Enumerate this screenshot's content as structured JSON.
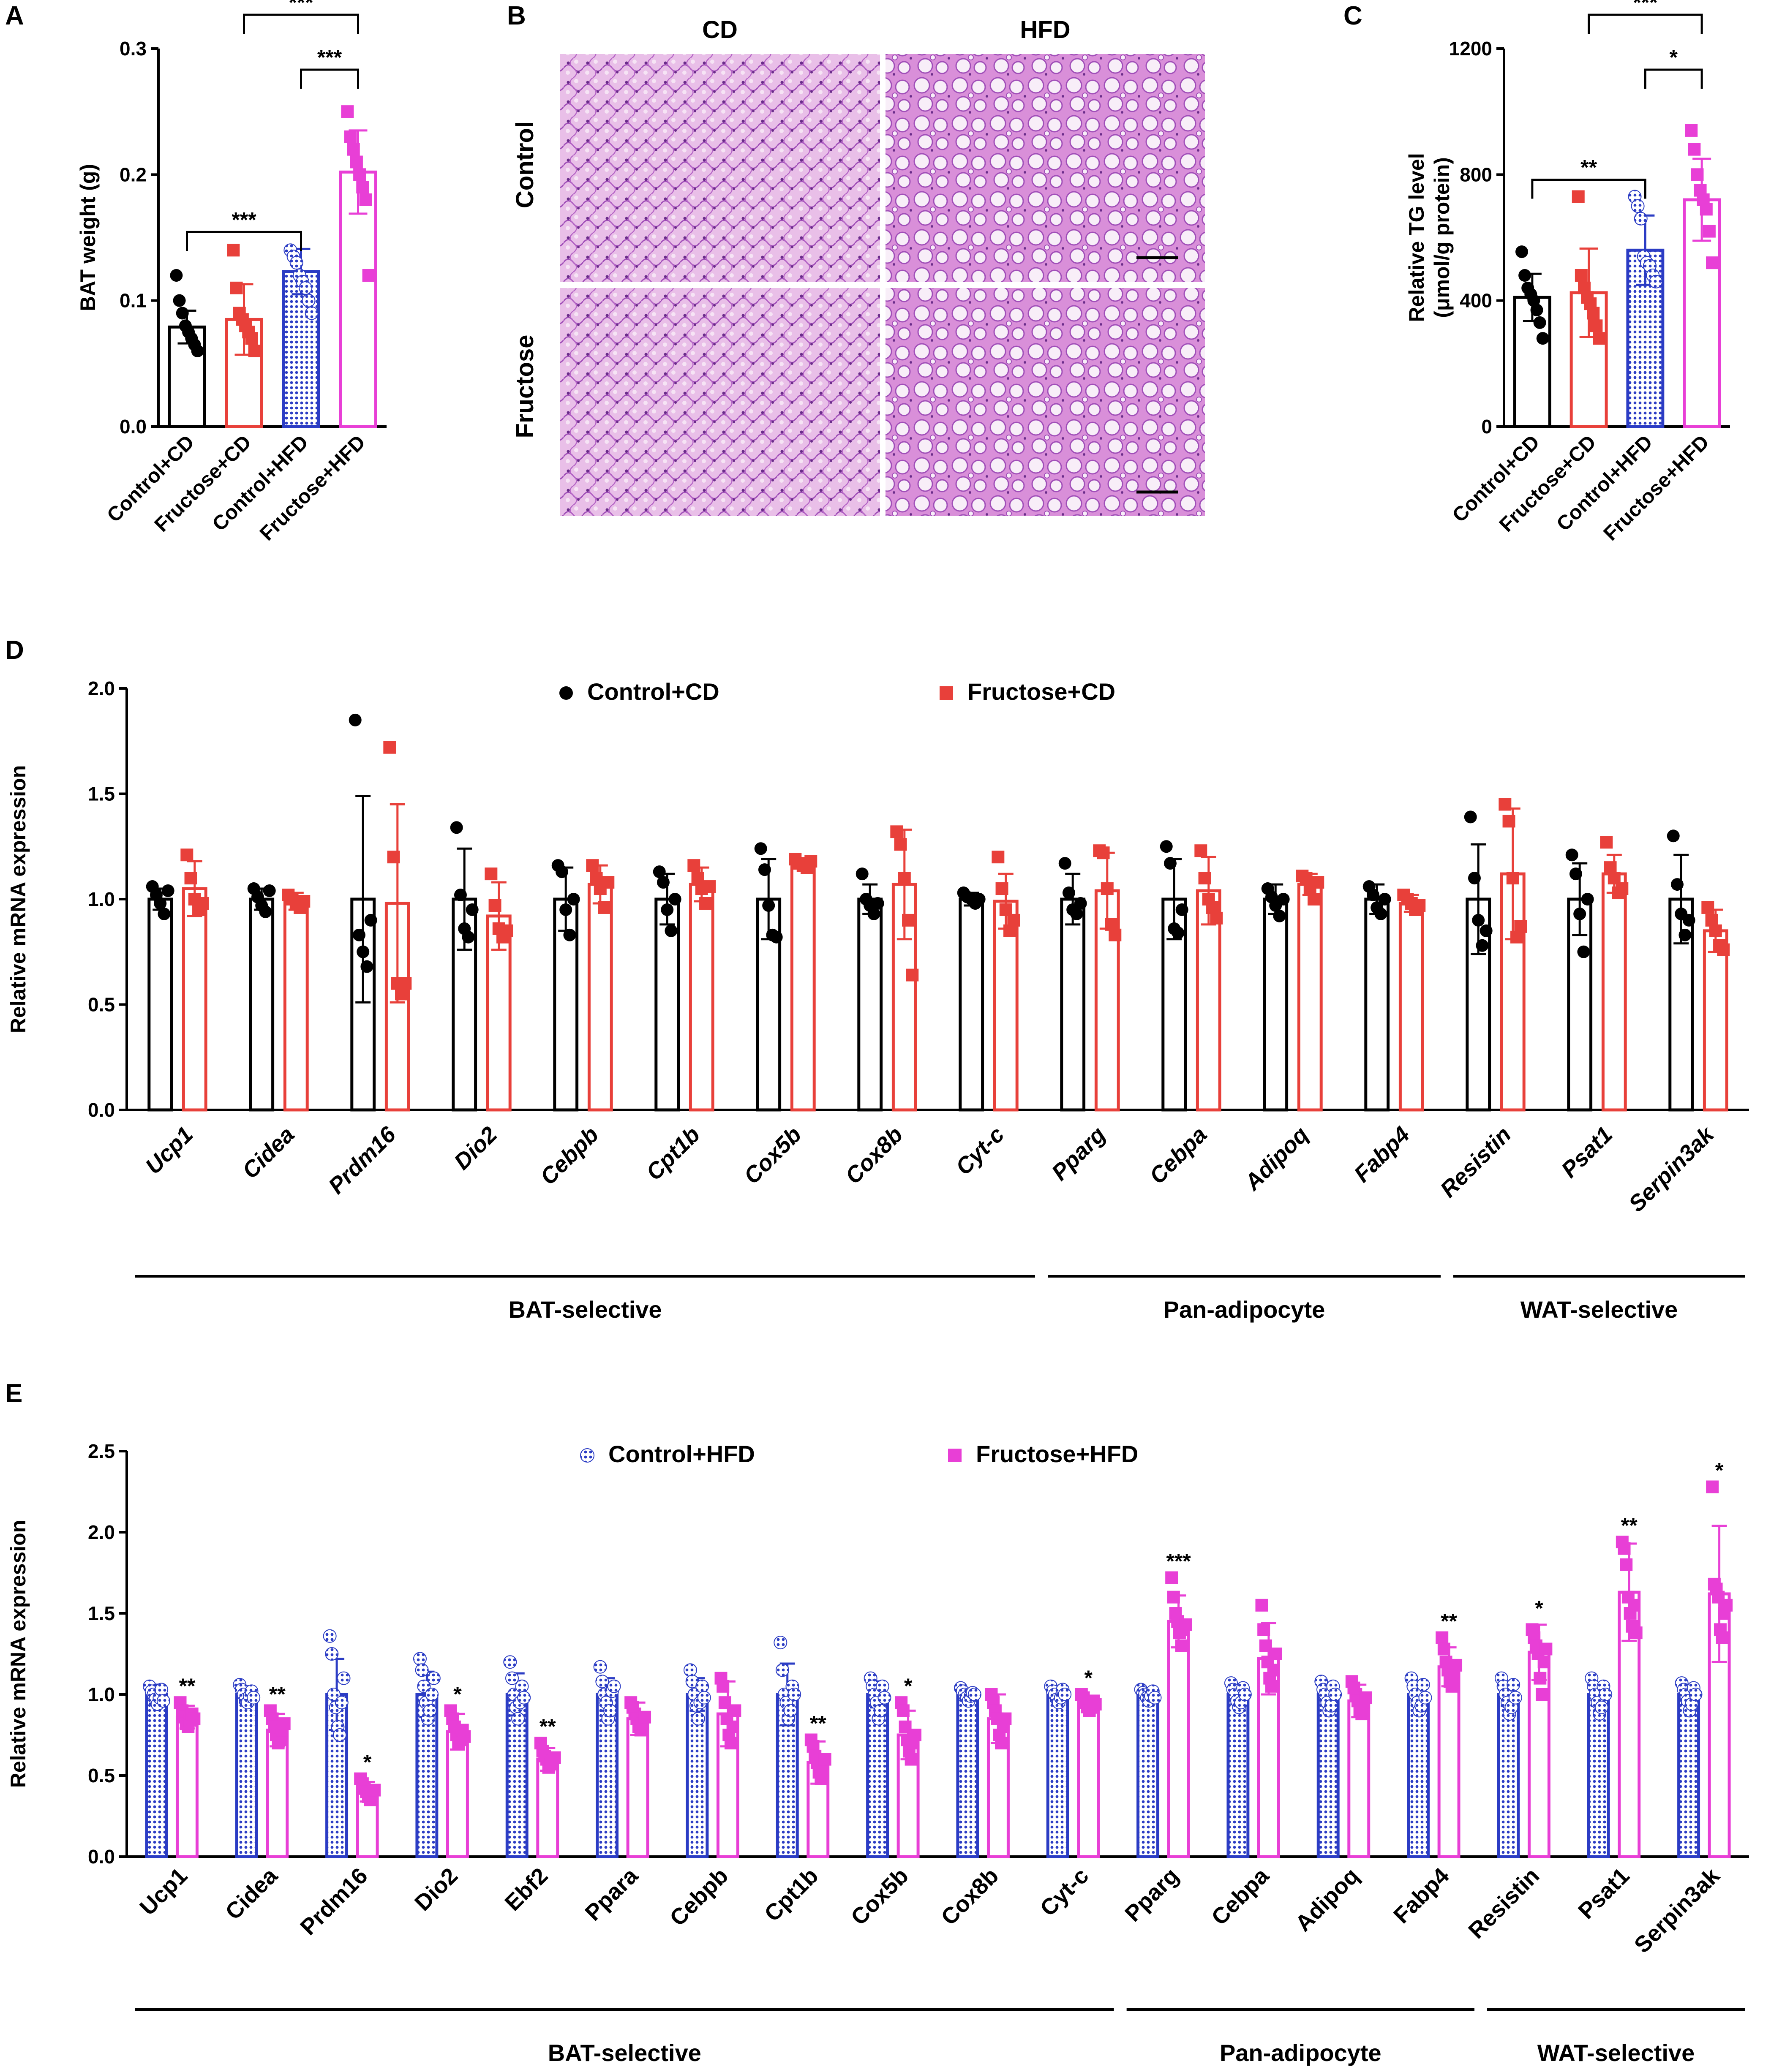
{
  "panel_labels": [
    "A",
    "B",
    "C",
    "D",
    "E"
  ],
  "colors": {
    "control_cd": "#000000",
    "fructose_cd": "#e8403a",
    "control_hfd": "#2b3cc4",
    "fructose_hfd": "#e83fd6",
    "he_stain_pink": "#e6b3e6",
    "he_stain_purple": "#9b4fb3"
  },
  "panel_b": {
    "col_headers": [
      "CD",
      "HFD"
    ],
    "row_headers": [
      "Control",
      "Fructose"
    ],
    "image_desc": [
      "he-histology-control-cd",
      "he-histology-control-hfd",
      "he-histology-fructose-cd",
      "he-histology-fructose-hfd"
    ]
  },
  "chart_data": [
    {
      "id": "A",
      "type": "bar",
      "ylabel": "BAT weight (g)",
      "categories": [
        "Control+CD",
        "Fructose+CD",
        "Control+HFD",
        "Fructose+HFD"
      ],
      "values": [
        0.079,
        0.085,
        0.123,
        0.202
      ],
      "errors": [
        0.013,
        0.028,
        0.018,
        0.033
      ],
      "points": [
        [
          0.12,
          0.1,
          0.09,
          0.08,
          0.075,
          0.07,
          0.065,
          0.06
        ],
        [
          0.14,
          0.11,
          0.09,
          0.085,
          0.08,
          0.075,
          0.07,
          0.06
        ],
        [
          0.14,
          0.135,
          0.13,
          0.12,
          0.115,
          0.11,
          0.1,
          0.09
        ],
        [
          0.25,
          0.23,
          0.22,
          0.21,
          0.2,
          0.19,
          0.18,
          0.12
        ]
      ],
      "ylim": [
        0,
        0.3
      ],
      "yticks": [
        "0.0",
        "0.1",
        "0.2",
        "0.3"
      ],
      "ytick_values": [
        0,
        0.1,
        0.2,
        0.3
      ],
      "sig": [
        {
          "from": 0,
          "to": 2,
          "label": "***"
        },
        {
          "from": 2,
          "to": 3,
          "label": "***"
        },
        {
          "from": 1,
          "to": 3,
          "label": "***"
        }
      ]
    },
    {
      "id": "C",
      "type": "bar",
      "ylabel": "Relative TG level",
      "ylabel2": "(μmol/g protein)",
      "categories": [
        "Control+CD",
        "Fructose+CD",
        "Control+HFD",
        "Fructose+HFD"
      ],
      "values": [
        410,
        425,
        560,
        720
      ],
      "errors": [
        75,
        140,
        110,
        130
      ],
      "points": [
        [
          555,
          480,
          440,
          420,
          400,
          370,
          330,
          280
        ],
        [
          730,
          480,
          440,
          410,
          390,
          360,
          320,
          280
        ],
        [
          730,
          700,
          660,
          540,
          520,
          510,
          480,
          460
        ],
        [
          940,
          880,
          800,
          750,
          720,
          690,
          620,
          520
        ]
      ],
      "ylim": [
        0,
        1200
      ],
      "yticks": [
        "0",
        "400",
        "800",
        "1200"
      ],
      "ytick_values": [
        0,
        400,
        800,
        1200
      ],
      "sig": [
        {
          "from": 0,
          "to": 2,
          "label": "**"
        },
        {
          "from": 2,
          "to": 3,
          "label": "*"
        },
        {
          "from": 1,
          "to": 3,
          "label": "***"
        }
      ]
    },
    {
      "id": "D",
      "type": "bar",
      "ylabel": "Relative mRNA expression",
      "series": [
        {
          "name": "Control+CD",
          "values": [
            1.0,
            1.0,
            1.0,
            1.0,
            1.0,
            1.0,
            1.0,
            1.0,
            1.0,
            1.0,
            1.0,
            1.0,
            1.0,
            1.0,
            1.0,
            1.0
          ],
          "errors": [
            0.05,
            0.05,
            0.49,
            0.24,
            0.15,
            0.12,
            0.19,
            0.07,
            0.03,
            0.12,
            0.19,
            0.07,
            0.07,
            0.26,
            0.17,
            0.21
          ],
          "points": [
            [
              1.06,
              1.02,
              0.98,
              0.93,
              1.04
            ],
            [
              1.05,
              1.01,
              0.97,
              0.94,
              1.04
            ],
            [
              1.85,
              0.83,
              0.75,
              0.68,
              0.9
            ],
            [
              1.34,
              1.02,
              0.86,
              0.82,
              0.95
            ],
            [
              1.16,
              1.13,
              0.95,
              0.83,
              1.0
            ],
            [
              1.13,
              1.08,
              0.95,
              0.85,
              1.0
            ],
            [
              1.24,
              1.14,
              0.97,
              0.83,
              0.82
            ],
            [
              1.12,
              1.0,
              0.97,
              0.93,
              0.98
            ],
            [
              1.03,
              1.01,
              1.0,
              0.98,
              1.0
            ],
            [
              1.17,
              1.03,
              0.95,
              0.93,
              0.98
            ],
            [
              1.25,
              1.17,
              0.86,
              0.84,
              0.95
            ],
            [
              1.05,
              1.01,
              0.97,
              0.92,
              1.0
            ],
            [
              1.06,
              1.02,
              0.96,
              0.93,
              1.0
            ],
            [
              1.39,
              1.1,
              0.9,
              0.78,
              0.85
            ],
            [
              1.21,
              1.12,
              0.93,
              0.75,
              1.0
            ],
            [
              1.3,
              1.07,
              0.93,
              0.83,
              0.9
            ]
          ]
        },
        {
          "name": "Fructose+CD",
          "values": [
            1.05,
            0.99,
            0.98,
            0.92,
            1.07,
            1.07,
            1.17,
            1.07,
            0.99,
            1.04,
            1.04,
            1.07,
            0.98,
            1.12,
            1.12,
            0.85
          ],
          "errors": [
            0.13,
            0.04,
            0.47,
            0.16,
            0.09,
            0.08,
            0.02,
            0.26,
            0.13,
            0.18,
            0.16,
            0.05,
            0.04,
            0.31,
            0.09,
            0.1
          ],
          "points": [
            [
              1.21,
              1.1,
              1.0,
              0.95,
              0.98
            ],
            [
              1.02,
              1.0,
              0.98,
              0.96,
              0.99
            ],
            [
              1.72,
              1.2,
              0.6,
              0.55,
              0.6
            ],
            [
              1.12,
              0.97,
              0.86,
              0.82,
              0.85
            ],
            [
              1.16,
              1.1,
              1.05,
              0.96,
              1.08
            ],
            [
              1.16,
              1.1,
              1.05,
              0.98,
              1.06
            ],
            [
              1.19,
              1.17,
              1.16,
              1.15,
              1.18
            ],
            [
              1.32,
              1.26,
              1.1,
              0.9,
              0.64
            ],
            [
              1.2,
              1.05,
              0.95,
              0.85,
              0.9
            ],
            [
              1.23,
              1.22,
              1.05,
              0.88,
              0.83
            ],
            [
              1.23,
              1.1,
              1.0,
              0.96,
              0.91
            ],
            [
              1.11,
              1.1,
              1.05,
              1.0,
              1.08
            ],
            [
              1.02,
              1.0,
              0.98,
              0.95,
              0.97
            ],
            [
              1.45,
              1.37,
              1.1,
              0.82,
              0.87
            ],
            [
              1.27,
              1.15,
              1.1,
              1.03,
              1.05
            ],
            [
              0.96,
              0.9,
              0.85,
              0.78,
              0.76
            ]
          ]
        }
      ],
      "categories": [
        "Ucp1",
        "Cidea",
        "Prdm16",
        "Dio2",
        "Cebpb",
        "Cpt1b",
        "Cox5b",
        "Cox8b",
        "Cyt-c",
        "Pparg",
        "Cebpa",
        "Adipoq",
        "Fabp4",
        "Resistin",
        "Psat1",
        "Serpin3ak"
      ],
      "ylim": [
        0,
        2.0
      ],
      "yticks": [
        "0.0",
        "0.5",
        "1.0",
        "1.5",
        "2.0"
      ],
      "ytick_values": [
        0,
        0.5,
        1.0,
        1.5,
        2.0
      ],
      "groups": [
        {
          "label": "BAT-selective",
          "start": 0,
          "end": 8
        },
        {
          "label": "Pan-adipocyte",
          "start": 9,
          "end": 12
        },
        {
          "label": "WAT-selective",
          "start": 13,
          "end": 15
        }
      ]
    },
    {
      "id": "E",
      "type": "bar",
      "ylabel": "Relative mRNA expression",
      "series": [
        {
          "name": "Control+HFD",
          "values": [
            1.0,
            1.0,
            1.0,
            1.0,
            1.0,
            1.0,
            1.0,
            1.0,
            1.0,
            1.0,
            1.0,
            1.0,
            1.0,
            1.0,
            1.0,
            1.0,
            1.0,
            1.0
          ],
          "errors": [
            0.06,
            0.05,
            0.22,
            0.14,
            0.13,
            0.1,
            0.1,
            0.19,
            0.08,
            0.03,
            0.04,
            0.03,
            0.06,
            0.06,
            0.07,
            0.07,
            0.07,
            0.06
          ],
          "points": [
            [
              1.05,
              1.02,
              1.0,
              0.97,
              0.94,
              0.98,
              1.03,
              0.96
            ],
            [
              1.06,
              1.03,
              1.0,
              0.97,
              0.95,
              0.99,
              1.02,
              0.98
            ],
            [
              1.36,
              1.25,
              1.0,
              0.92,
              0.8,
              0.75,
              0.95,
              1.1
            ],
            [
              1.22,
              1.15,
              1.05,
              0.95,
              0.85,
              0.9,
              1.0,
              1.1
            ],
            [
              1.2,
              1.1,
              1.0,
              0.92,
              0.85,
              0.95,
              1.05,
              0.98
            ],
            [
              1.17,
              1.08,
              1.0,
              0.95,
              0.85,
              0.9,
              1.02,
              1.05
            ],
            [
              1.15,
              1.08,
              1.0,
              0.93,
              0.85,
              0.95,
              1.05,
              0.98
            ],
            [
              1.32,
              1.15,
              1.0,
              0.95,
              0.85,
              0.9,
              1.05,
              1.0
            ],
            [
              1.1,
              1.05,
              1.0,
              0.95,
              0.85,
              0.9,
              1.05,
              0.98
            ],
            [
              1.04,
              1.02,
              1.0,
              0.98,
              0.96,
              0.99,
              1.01,
              1.0
            ],
            [
              1.05,
              1.02,
              1.0,
              0.97,
              0.95,
              0.98,
              1.03,
              1.0
            ],
            [
              1.03,
              1.01,
              1.0,
              0.98,
              0.96,
              0.99,
              1.02,
              0.98
            ],
            [
              1.07,
              1.03,
              1.0,
              0.96,
              0.92,
              0.95,
              1.04,
              1.0
            ],
            [
              1.08,
              1.03,
              1.0,
              0.95,
              0.9,
              0.93,
              1.05,
              1.0
            ],
            [
              1.1,
              1.05,
              1.0,
              0.95,
              0.9,
              0.93,
              1.06,
              0.98
            ],
            [
              1.1,
              1.05,
              1.0,
              0.95,
              0.88,
              0.92,
              1.06,
              0.98
            ],
            [
              1.1,
              1.05,
              1.0,
              0.95,
              0.88,
              0.92,
              1.05,
              1.0
            ],
            [
              1.07,
              1.03,
              1.0,
              0.96,
              0.9,
              0.94,
              1.04,
              1.0
            ]
          ]
        },
        {
          "name": "Fructose+HFD",
          "values": [
            0.86,
            0.78,
            0.4,
            0.77,
            0.6,
            0.85,
            0.88,
            0.58,
            0.75,
            0.85,
            0.94,
            1.45,
            1.22,
            0.96,
            1.17,
            1.26,
            1.63,
            1.62
          ],
          "errors": [
            0.07,
            0.1,
            0.06,
            0.11,
            0.07,
            0.1,
            0.2,
            0.13,
            0.15,
            0.15,
            0.05,
            0.16,
            0.22,
            0.1,
            0.12,
            0.17,
            0.3,
            0.42
          ],
          "points": [
            [
              0.95,
              0.9,
              0.86,
              0.82,
              0.8,
              0.84,
              0.88,
              0.85
            ],
            [
              0.9,
              0.85,
              0.8,
              0.75,
              0.7,
              0.72,
              0.78,
              0.82
            ],
            [
              0.48,
              0.45,
              0.42,
              0.4,
              0.37,
              0.35,
              0.38,
              0.41
            ],
            [
              0.9,
              0.85,
              0.8,
              0.75,
              0.7,
              0.72,
              0.78,
              0.74
            ],
            [
              0.7,
              0.65,
              0.62,
              0.6,
              0.55,
              0.57,
              0.59,
              0.61
            ],
            [
              0.95,
              0.92,
              0.88,
              0.85,
              0.8,
              0.78,
              0.82,
              0.86
            ],
            [
              1.1,
              1.05,
              0.95,
              0.85,
              0.75,
              0.7,
              0.8,
              0.9
            ],
            [
              0.72,
              0.68,
              0.62,
              0.58,
              0.52,
              0.48,
              0.55,
              0.6
            ],
            [
              0.95,
              0.9,
              0.8,
              0.72,
              0.65,
              0.6,
              0.7,
              0.75
            ],
            [
              1.0,
              0.95,
              0.9,
              0.85,
              0.75,
              0.7,
              0.8,
              0.85
            ],
            [
              1.0,
              0.98,
              0.95,
              0.93,
              0.9,
              0.92,
              0.96,
              0.94
            ],
            [
              1.72,
              1.6,
              1.5,
              1.45,
              1.38,
              1.3,
              1.4,
              1.43
            ],
            [
              1.55,
              1.4,
              1.3,
              1.2,
              1.1,
              1.05,
              1.15,
              1.25
            ],
            [
              1.08,
              1.04,
              1.0,
              0.96,
              0.9,
              0.88,
              0.93,
              0.98
            ],
            [
              1.35,
              1.28,
              1.2,
              1.15,
              1.08,
              1.05,
              1.12,
              1.18
            ],
            [
              1.4,
              1.35,
              1.3,
              1.25,
              1.1,
              1.0,
              1.2,
              1.28
            ],
            [
              1.94,
              1.9,
              1.8,
              1.6,
              1.5,
              1.42,
              1.55,
              1.38
            ],
            [
              2.28,
              1.68,
              1.65,
              1.6,
              1.4,
              1.35,
              1.5,
              1.55
            ]
          ]
        }
      ],
      "categories": [
        "Ucp1",
        "Cidea",
        "Prdm16",
        "Dio2",
        "Ebf2",
        "Ppara",
        "Cebpb",
        "Cpt1b",
        "Cox5b",
        "Cox8b",
        "Cyt-c",
        "Pparg",
        "Cebpa",
        "Adipoq",
        "Fabp4",
        "Resistin",
        "Psat1",
        "Serpin3ak"
      ],
      "sig": [
        "**",
        "**",
        "*",
        "*",
        "**",
        "",
        "",
        "**",
        "*",
        "",
        "*",
        "***",
        "",
        "",
        "**",
        "*",
        "**",
        "*"
      ],
      "ylim": [
        0,
        2.5
      ],
      "yticks": [
        "0.0",
        "0.5",
        "1.0",
        "1.5",
        "2.0",
        "2.5"
      ],
      "ytick_values": [
        0,
        0.5,
        1.0,
        1.5,
        2.0,
        2.5
      ],
      "groups": [
        {
          "label": "BAT-selective",
          "start": 0,
          "end": 10
        },
        {
          "label": "Pan-adipocyte",
          "start": 11,
          "end": 14
        },
        {
          "label": "WAT-selective",
          "start": 15,
          "end": 17
        }
      ]
    }
  ]
}
